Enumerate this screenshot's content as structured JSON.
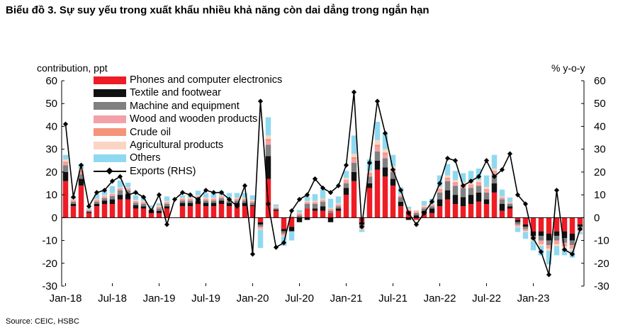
{
  "title": "Biểu đồ 3. Sự suy yếu trong xuất khẩu nhiều khả năng còn dai dẳng trong ngắn hạn",
  "source": "Source: CEIC, HSBC",
  "chart_data": {
    "type": "bar",
    "stacked": true,
    "left_axis_label": "contribution, ppt",
    "right_axis_label": "% y-o-y",
    "ylim": [
      -30,
      60
    ],
    "yticks": [
      60,
      50,
      40,
      30,
      20,
      10,
      0,
      -10,
      -20,
      -30
    ],
    "xtick_labels": [
      "Jan-18",
      "Jul-18",
      "Jan-19",
      "Jul-19",
      "Jan-20",
      "Jul-20",
      "Jan-21",
      "Jul-21",
      "Jan-22",
      "Jul-22",
      "Jan-23"
    ],
    "xtick_months": [
      0,
      6,
      12,
      18,
      24,
      30,
      36,
      42,
      48,
      54,
      60
    ],
    "months": 67,
    "legend_position": "top-left",
    "series": [
      {
        "name": "Phones and computer electronics",
        "color": "#ee1c25",
        "values": [
          16,
          5,
          14,
          2,
          5,
          6,
          6,
          8,
          8,
          4,
          4,
          2,
          2,
          4,
          0,
          5,
          5,
          6,
          5,
          5,
          6,
          5,
          5,
          5,
          5,
          -2,
          17,
          3,
          -5,
          -4,
          0,
          4,
          3,
          3,
          2,
          3,
          10,
          16,
          -2,
          13,
          21,
          18,
          14,
          5,
          3,
          -1,
          2,
          2,
          5,
          8,
          6,
          5,
          6,
          7,
          6,
          11,
          3,
          4,
          -1,
          -3,
          -6,
          -6,
          -7,
          -6,
          -6,
          -7,
          -3
        ]
      },
      {
        "name": "Textile and footwear",
        "color": "#111111",
        "values": [
          4,
          1,
          3,
          0.5,
          1,
          1.5,
          2,
          2,
          2,
          1.5,
          1,
          1,
          1,
          1,
          0,
          1.5,
          1.5,
          1.5,
          1.5,
          1.5,
          1.5,
          1.5,
          1.5,
          1.5,
          0.5,
          -1,
          10,
          0.5,
          -1,
          -2,
          -2,
          -1,
          1,
          2,
          -2,
          1,
          3,
          4,
          -1,
          2,
          4,
          4,
          3,
          2,
          -1,
          1,
          1,
          2,
          3,
          4,
          4,
          4,
          4,
          4,
          2,
          4,
          3,
          1,
          -1,
          -1,
          -2,
          -2,
          -3,
          -2,
          -3,
          -3,
          -1
        ]
      },
      {
        "name": "Machine and equipment",
        "color": "#808080",
        "values": [
          3,
          1,
          2,
          0.5,
          1,
          1,
          1.5,
          2,
          2,
          1,
          1,
          0.5,
          1,
          1,
          0,
          1,
          1,
          1,
          1,
          1,
          1,
          1,
          1,
          1,
          1,
          -1,
          5,
          0.5,
          -1,
          0,
          1,
          2,
          2,
          2,
          1,
          1,
          2,
          4,
          -1,
          3,
          4,
          4,
          3,
          2,
          0,
          1,
          1,
          1,
          3,
          4,
          4,
          4,
          3,
          3,
          3,
          4,
          2,
          1,
          -1,
          -1,
          -1,
          -2,
          -2,
          -2,
          -2,
          -2,
          -1
        ]
      },
      {
        "name": "Wood and wooden products",
        "color": "#f4a0a8",
        "values": [
          1,
          0.5,
          1,
          0.3,
          0.5,
          0.5,
          0.5,
          0.5,
          0.5,
          0.5,
          0.5,
          0.3,
          0.5,
          0.5,
          0,
          0.5,
          0.5,
          0.5,
          0.5,
          0.5,
          0.5,
          0.5,
          0.5,
          0.5,
          0.5,
          -0.5,
          1.5,
          0.3,
          -0.5,
          0.3,
          0.5,
          0.5,
          0.5,
          0.5,
          0.5,
          0.5,
          1,
          1.5,
          -0.5,
          1,
          2,
          1.5,
          1,
          0.5,
          0.3,
          0.5,
          0.5,
          0.5,
          1,
          1,
          1,
          1,
          1,
          1,
          1,
          1,
          0.5,
          0.3,
          -0.5,
          -0.5,
          -0.5,
          -1,
          -1,
          -1,
          -1,
          -1,
          -0.5
        ]
      },
      {
        "name": "Crude oil",
        "color": "#f4947a",
        "values": [
          0.5,
          0.3,
          0.5,
          0.2,
          0.3,
          0.3,
          0.3,
          0.3,
          0.3,
          0.3,
          0.3,
          0.2,
          0.3,
          0.3,
          0,
          0.3,
          0.3,
          0.3,
          0.3,
          0.3,
          0.3,
          0.3,
          0.3,
          0.3,
          0.3,
          -0.3,
          1,
          0.2,
          -0.3,
          0.2,
          0.3,
          0.3,
          0.3,
          0.3,
          0.3,
          0.3,
          0.5,
          1,
          -0.3,
          0.5,
          1,
          1,
          0.5,
          0.3,
          0.2,
          0.3,
          0.3,
          0.3,
          0.5,
          0.5,
          0.5,
          0.5,
          0.5,
          0.5,
          0.5,
          0.5,
          0.3,
          0.2,
          -0.3,
          -0.3,
          -0.3,
          -0.5,
          -0.5,
          -0.5,
          -0.5,
          -0.5,
          -0.3
        ]
      },
      {
        "name": "Agricultural products",
        "color": "#fbd5c3",
        "values": [
          1,
          0.5,
          1,
          0.3,
          0.5,
          0.5,
          0.5,
          0.5,
          0.5,
          0.5,
          0.5,
          0.3,
          0.5,
          0.5,
          0,
          0.5,
          0.5,
          0.5,
          0.5,
          0.5,
          0.5,
          0.5,
          0.5,
          0.5,
          0.5,
          -0.5,
          1.5,
          0.3,
          -0.5,
          0.3,
          0.5,
          0.5,
          0.5,
          0.5,
          0.5,
          0.5,
          1,
          1.5,
          -0.5,
          1,
          2,
          1.5,
          1,
          0.5,
          0.3,
          0.5,
          0.5,
          0.5,
          1,
          1,
          1,
          1,
          1,
          1,
          1,
          1,
          0.5,
          0.3,
          -0.5,
          -0.5,
          -0.5,
          -1,
          -1,
          -1,
          -1,
          -1,
          -0.5
        ]
      },
      {
        "name": "Others",
        "color": "#8fd9f0",
        "values": [
          2,
          1,
          2,
          0.5,
          2,
          2,
          3,
          3,
          2,
          2,
          2,
          1,
          1,
          2,
          0,
          1,
          1,
          2,
          2,
          2,
          2,
          2,
          2,
          2,
          2,
          -8,
          8,
          1,
          -4,
          -4,
          1,
          2,
          3,
          4,
          4,
          3,
          3,
          8,
          -1,
          5,
          8,
          7,
          5,
          3,
          1,
          0,
          2,
          2,
          5,
          5,
          4,
          4,
          5,
          5,
          5,
          6,
          3,
          2,
          -2,
          -3,
          -4,
          -4,
          -6,
          -4,
          -3,
          -3,
          -1
        ]
      },
      {
        "name": "Exports (RHS)",
        "color": "#000000",
        "type": "line",
        "values": [
          41,
          9,
          23,
          5,
          11,
          12,
          16,
          18,
          10,
          11,
          9,
          3,
          10,
          -3,
          8,
          11,
          10,
          8,
          12,
          11,
          11,
          8,
          5,
          14,
          -16,
          51,
          6,
          -13,
          -11,
          3,
          8,
          10,
          17,
          13,
          11,
          14,
          23,
          55,
          -4,
          24,
          51,
          37,
          21,
          12,
          2,
          -3,
          2,
          7,
          15,
          26,
          25,
          14,
          16,
          18,
          25,
          18,
          21,
          28,
          10,
          6,
          -9,
          -15,
          -25,
          12,
          -14,
          -16,
          -5
        ]
      }
    ]
  }
}
